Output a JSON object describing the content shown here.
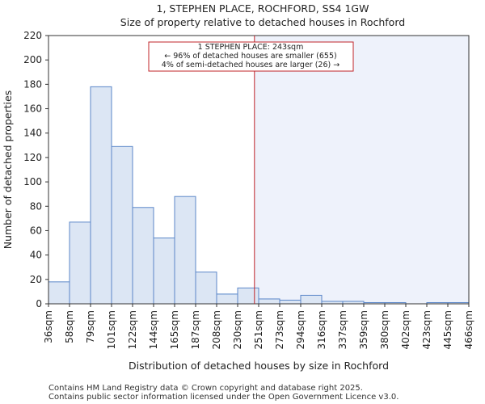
{
  "chart_data": {
    "type": "bar",
    "title": [
      "1, STEPHEN PLACE, ROCHFORD, SS4 1GW",
      "Size of property relative to detached houses in Rochford"
    ],
    "xlabel": "Distribution of detached houses by size in Rochford",
    "ylabel": "Number of detached properties",
    "ylim": [
      0,
      220
    ],
    "yticks": [
      0,
      20,
      40,
      60,
      80,
      100,
      120,
      140,
      160,
      180,
      200,
      220
    ],
    "bin_edges": [
      "36sqm",
      "58sqm",
      "79sqm",
      "101sqm",
      "122sqm",
      "144sqm",
      "165sqm",
      "187sqm",
      "208sqm",
      "230sqm",
      "251sqm",
      "273sqm",
      "294sqm",
      "316sqm",
      "337sqm",
      "359sqm",
      "380sqm",
      "402sqm",
      "423sqm",
      "445sqm",
      "466sqm"
    ],
    "values": [
      18,
      67,
      178,
      129,
      79,
      54,
      88,
      26,
      8,
      13,
      4,
      3,
      7,
      2,
      2,
      1,
      1,
      0,
      1,
      1
    ],
    "marker": {
      "position_index": 9.8,
      "label_lines": [
        "1 STEPHEN PLACE: 243sqm",
        "← 96% of detached houses are smaller (655)",
        "4% of semi-detached houses are larger (26) →"
      ]
    },
    "colors": {
      "bar_fill": "#dce6f4",
      "bar_stroke": "#5b87c8",
      "marker": "#c0242a",
      "highlight": "#eef2fb"
    }
  },
  "footer": {
    "line1": "Contains HM Land Registry data © Crown copyright and database right 2025.",
    "line2": "Contains public sector information licensed under the Open Government Licence v3.0."
  }
}
